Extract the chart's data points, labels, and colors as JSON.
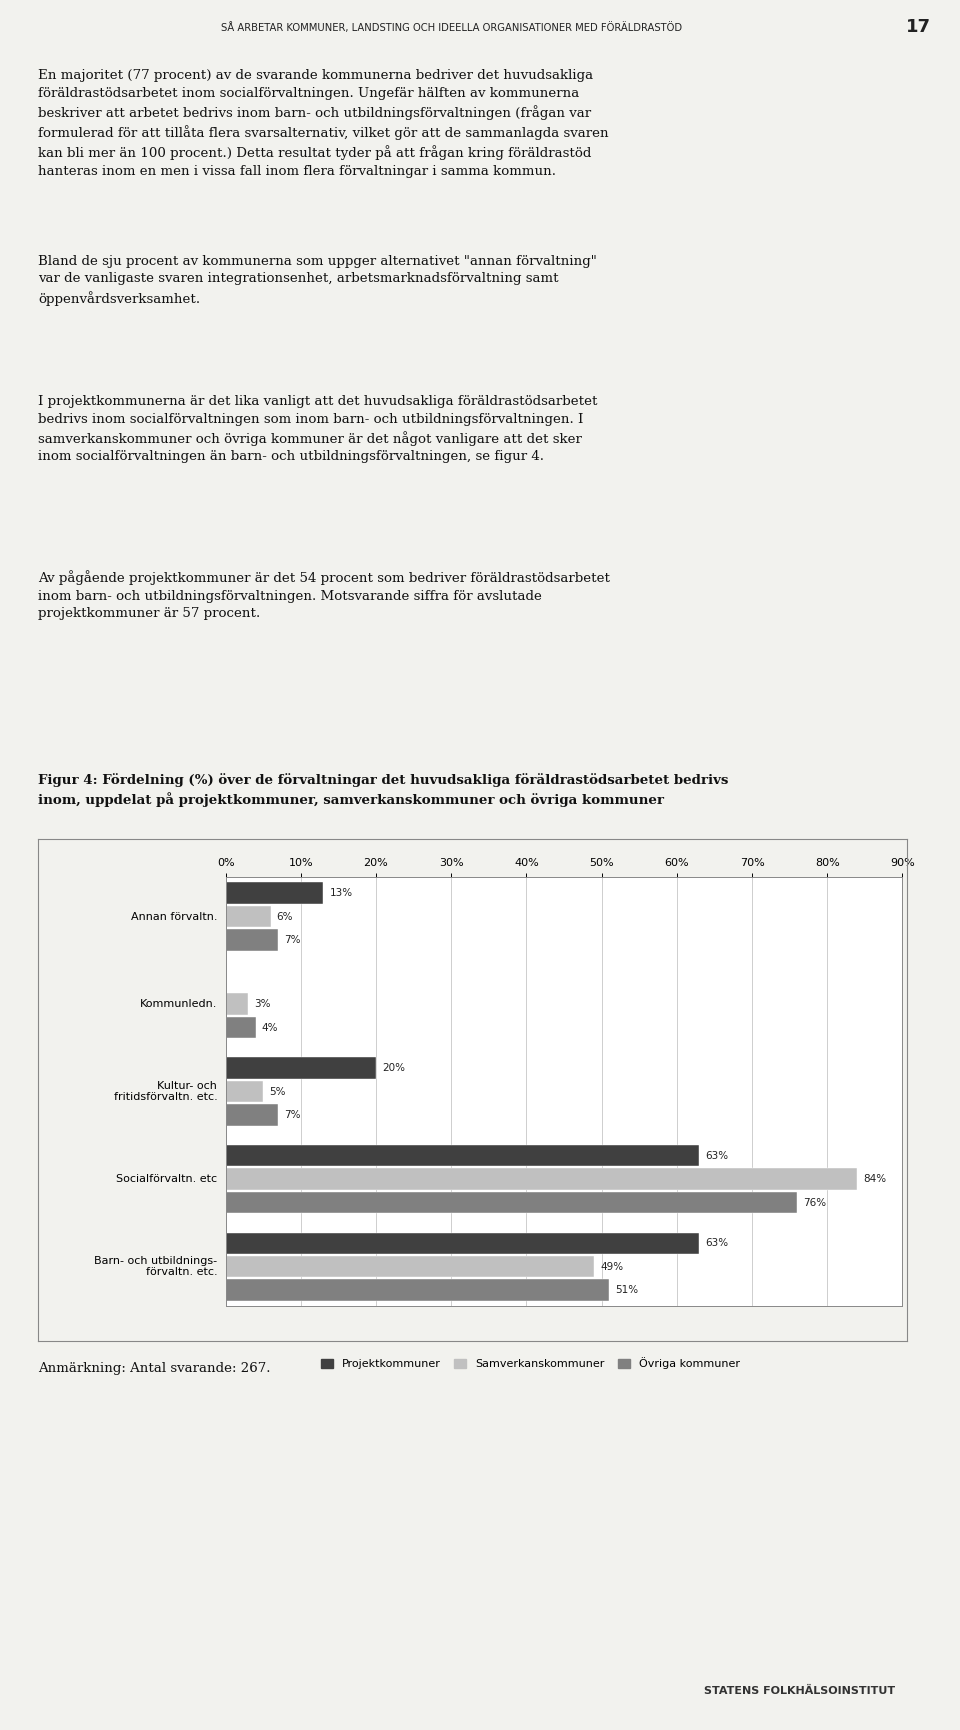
{
  "page_header": "SÅ ARBETAR KOMMUNER, LANDSTING OCH IDEELLA ORGANISATIONER MED FÖRÄLDRASTÖD",
  "page_number": "17",
  "body_text": [
    "En majoritet (77 procent) av de svarande kommunerna bedriver det huvudsakliga\nföräldrastödsarbetet inom socialförvaltningen. Ungefär hälften av kommunerna\nbeskriver att arbetet bedrivs inom barn- och utbildningsförvaltningen (frågan var\nformulerad för att tillåta flera svarsalternativ, vilket gör att de sammanlagda svaren\nkan bli mer än 100 procent.) Detta resultat tyder på att frågan kring föräldrastöd\nhanteras inom en men i vissa fall inom flera förvaltningar i samma kommun.",
    "Bland de sju procent av kommunerna som uppger alternativet \"annan förvaltning\"\nvar de vanligaste svaren integrationsenhet, arbetsmarknadsförvaltning samt\nöppenvårdsverksamhet.",
    "I projektkommunerna är det lika vanligt att det huvudsakliga föräldrastödsarbetet\nbedrivs inom socialförvaltningen som inom barn- och utbildningsförvaltningen. I\nsamverkanskommuner och övriga kommuner är det något vanligare att det sker\ninom socialförvaltningen än barn- och utbildningsförvaltningen, se figur 4.",
    "Av pågående projektkommuner är det 54 procent som bedriver föräldrastödsarbetet\ninom barn- och utbildningsförvaltningen. Motsvarande siffra för avslutade\nprojektkommuner är 57 procent."
  ],
  "figure_caption": "Figur 4: Fördelning (%) över de förvaltningar det huvudsakliga föräldrastödsarbetet bedrivs\ninom, uppdelat på projektkommuner, samverkanskommuner och övriga kommuner",
  "categories": [
    "Barn- och utbildnings-\nförvaltn. etc.",
    "Socialförvaltn. etc",
    "Kultur- och\nfritidsförvaltn. etc.",
    "Kommunledn.",
    "Annan förvaltn."
  ],
  "series": {
    "Projektkommuner": [
      63,
      63,
      20,
      0,
      13
    ],
    "Samverkanskommuner": [
      49,
      84,
      5,
      3,
      6
    ],
    "Övriga kommuner": [
      51,
      76,
      7,
      4,
      7
    ]
  },
  "colors": {
    "Projektkommuner": "#404040",
    "Samverkanskommuner": "#c0c0c0",
    "Övriga kommuner": "#808080"
  },
  "xlim": [
    0,
    90
  ],
  "xticks": [
    0,
    10,
    20,
    30,
    40,
    50,
    60,
    70,
    80,
    90
  ],
  "xtick_labels": [
    "0%",
    "10%",
    "20%",
    "30%",
    "40%",
    "50%",
    "60%",
    "70%",
    "80%",
    "90%"
  ],
  "note": "Anmärkning: Antal svarande: 267.",
  "footer": "STATENS FOLKHÄLSOINSTITUT",
  "background_color": "#f2f2ee",
  "chart_background": "#ffffff"
}
